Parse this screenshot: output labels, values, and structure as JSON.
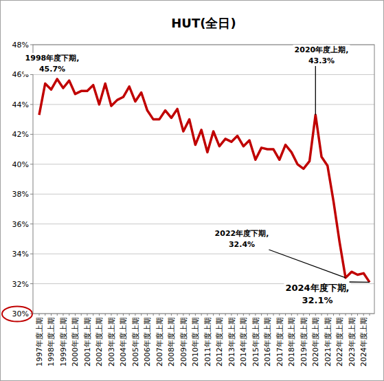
{
  "chart_data": {
    "type": "line",
    "title": "HUT(全日)",
    "categories": [
      "1997年度上期",
      null,
      "1998年度上期",
      null,
      "1999年度上期",
      null,
      "2000年度上期",
      null,
      "2001年度上期",
      null,
      "2002年度上期",
      null,
      "2003年度上期",
      null,
      "2004年度上期",
      null,
      "2005年度上期",
      null,
      "2006年度上期",
      null,
      "2007年度上期",
      null,
      "2008年度上期",
      null,
      "2009年度上期",
      null,
      "2010年度上期",
      null,
      "2011年度上期",
      null,
      "2012年度上期",
      null,
      "2013年度上期",
      null,
      "2014年度上期",
      null,
      "2015年度上期",
      null,
      "2016年度上期",
      null,
      "2017年度上期",
      null,
      "2018年度上期",
      null,
      "2019年度上期",
      null,
      "2020年度上期",
      null,
      "2021年度上期",
      null,
      "2022年度上期",
      null,
      "2023年度上期",
      null,
      "2024年度上期",
      null
    ],
    "values": [
      43.3,
      45.4,
      45.0,
      45.7,
      45.1,
      45.6,
      44.7,
      44.9,
      44.9,
      45.3,
      44.0,
      45.4,
      43.9,
      44.3,
      44.5,
      45.2,
      44.2,
      44.8,
      43.6,
      43.0,
      43.0,
      43.6,
      43.1,
      43.7,
      42.2,
      43.0,
      41.3,
      42.3,
      40.8,
      42.2,
      41.2,
      41.7,
      41.5,
      41.9,
      41.2,
      41.6,
      40.3,
      41.1,
      41.0,
      41.0,
      40.3,
      41.3,
      40.8,
      40.0,
      39.7,
      40.2,
      43.3,
      40.5,
      39.9,
      37.5,
      34.8,
      32.4,
      32.8,
      32.6,
      32.7,
      32.1
    ],
    "color": "#c00000",
    "line_style": "solid",
    "grid": true,
    "ylim": [
      30,
      48
    ],
    "yticks": [
      {
        "value": 30,
        "label": "30%"
      },
      {
        "value": 32,
        "label": "32%"
      },
      {
        "value": 34,
        "label": "34%"
      },
      {
        "value": 36,
        "label": "36%"
      },
      {
        "value": 38,
        "label": "38%"
      },
      {
        "value": 40,
        "label": "40%"
      },
      {
        "value": 42,
        "label": "42%"
      },
      {
        "value": 44,
        "label": "44%"
      },
      {
        "value": 46,
        "label": "46%"
      },
      {
        "value": 48,
        "label": "48%"
      }
    ],
    "annotations": [
      {
        "text": [
          "1998年度下期,",
          "45.7%"
        ],
        "at": 3
      },
      {
        "text": [
          "2020年度上期,",
          "43.3%"
        ],
        "at": 46
      },
      {
        "text": [
          "2022年度下期,",
          "32.4%"
        ],
        "at": 51
      },
      {
        "text": [
          "2024年度下期,",
          "32.1%"
        ],
        "at": 55
      }
    ]
  }
}
